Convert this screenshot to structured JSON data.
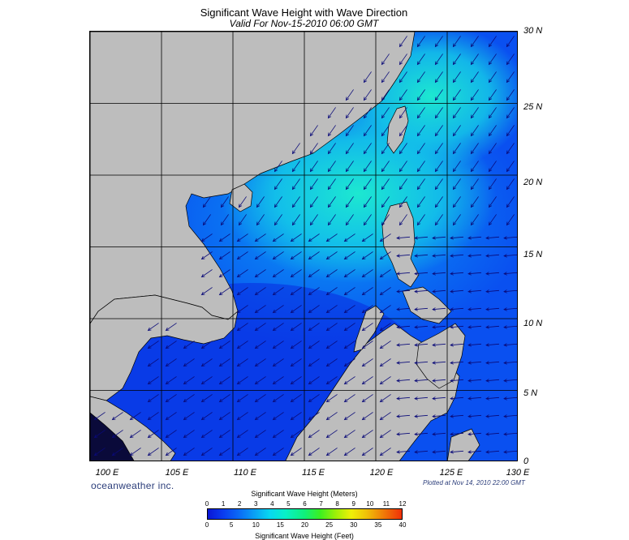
{
  "title": "Significant Wave Height with Wave Direction",
  "subtitle": "Valid For Nov-15-2010 06:00 GMT",
  "lat_labels": [
    "30 N",
    "25 N",
    "20 N",
    "15 N",
    "10 N",
    "5 N",
    "0"
  ],
  "lat_values": [
    30,
    25,
    20,
    15,
    10,
    5,
    0
  ],
  "lon_labels": [
    "100 E",
    "105 E",
    "110 E",
    "115 E",
    "120 E",
    "125 E",
    "130 E"
  ],
  "lon_values": [
    100,
    105,
    110,
    115,
    120,
    125,
    130
  ],
  "map_extent": {
    "lon": [
      100,
      130
    ],
    "lat": [
      0,
      30
    ]
  },
  "credit": "oceanweather inc.",
  "plotted": "Plotted at Nov 14, 2010 22:00 GMT",
  "legend": {
    "meters_title": "Significant Wave Height (Meters)",
    "meters_ticks": [
      "0",
      "1",
      "2",
      "3",
      "4",
      "5",
      "6",
      "7",
      "8",
      "9",
      "10",
      "11",
      "12"
    ],
    "feet_title": "Significant Wave Height (Feet)",
    "feet_ticks": [
      "0",
      "5",
      "10",
      "15",
      "20",
      "25",
      "30",
      "35",
      "40"
    ],
    "colors": [
      "#0a16d6",
      "#0a3cf0",
      "#0a6af5",
      "#0aa0f5",
      "#08d8f0",
      "#08f0c8",
      "#10f07a",
      "#3cf020",
      "#9ef008",
      "#f0f008",
      "#f0c008",
      "#f08008",
      "#f03008"
    ]
  },
  "colors": {
    "land": "#bdbdbd",
    "grid": "#000000",
    "arrow": "#0a0a78",
    "text_blue": "#2b3d7a"
  }
}
